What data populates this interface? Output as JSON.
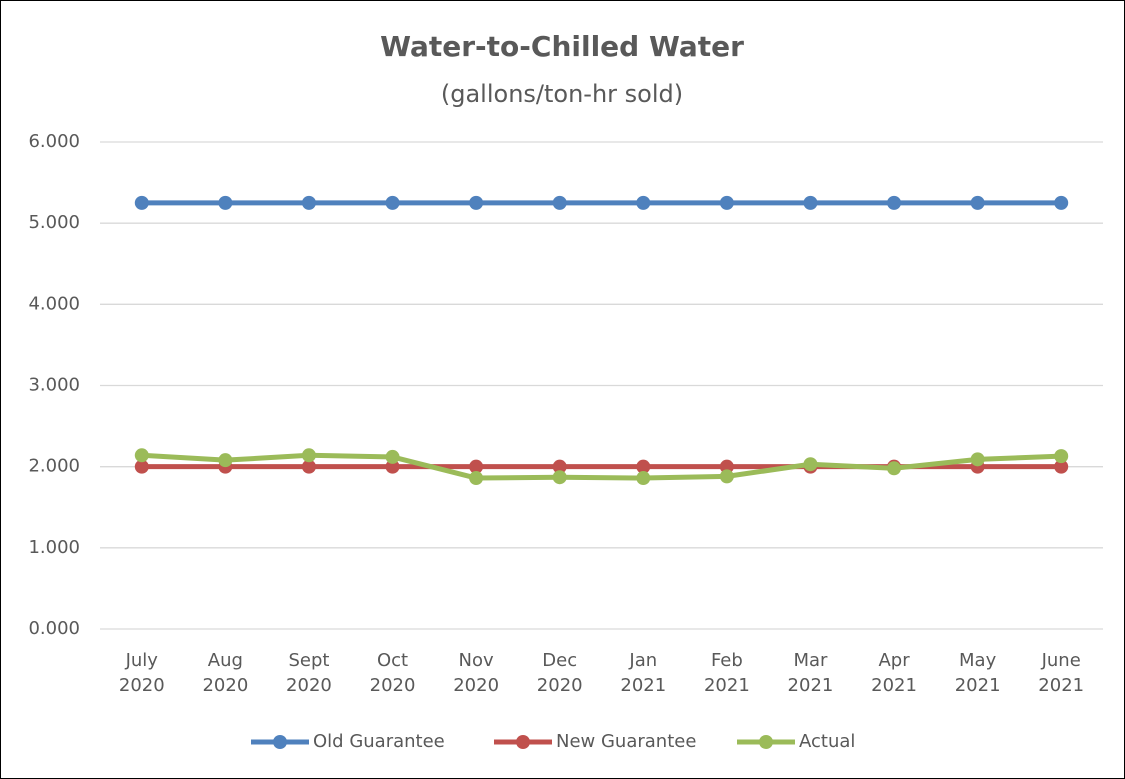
{
  "chart_data": {
    "type": "line",
    "title": "Water-to-Chilled Water",
    "subtitle": "(gallons/ton-hr sold)",
    "categories": [
      "July 2020",
      "Aug 2020",
      "Sept 2020",
      "Oct 2020",
      "Nov 2020",
      "Dec 2020",
      "Jan 2021",
      "Feb 2021",
      "Mar 2021",
      "Apr 2021",
      "May 2021",
      "June 2021"
    ],
    "series": [
      {
        "name": "Old Guarantee",
        "color": "#4f81bd",
        "values": [
          5.25,
          5.25,
          5.25,
          5.25,
          5.25,
          5.25,
          5.25,
          5.25,
          5.25,
          5.25,
          5.25,
          5.25
        ]
      },
      {
        "name": "New Guarantee",
        "color": "#c0504d",
        "values": [
          2.0,
          2.0,
          2.0,
          2.0,
          2.0,
          2.0,
          2.0,
          2.0,
          2.0,
          2.0,
          2.0,
          2.0
        ]
      },
      {
        "name": "Actual",
        "color": "#9bbb59",
        "values": [
          2.14,
          2.08,
          2.14,
          2.12,
          1.86,
          1.87,
          1.86,
          1.88,
          2.03,
          1.98,
          2.09,
          2.13
        ]
      }
    ],
    "ylim": [
      0,
      6
    ],
    "yticks": [
      {
        "value": 0,
        "label": "0.000"
      },
      {
        "value": 1,
        "label": "1.000"
      },
      {
        "value": 2,
        "label": "2.000"
      },
      {
        "value": 3,
        "label": "3.000"
      },
      {
        "value": 4,
        "label": "4.000"
      },
      {
        "value": 5,
        "label": "5.000"
      },
      {
        "value": 6,
        "label": "6.000"
      }
    ],
    "grid": true,
    "legend": "bottom"
  }
}
